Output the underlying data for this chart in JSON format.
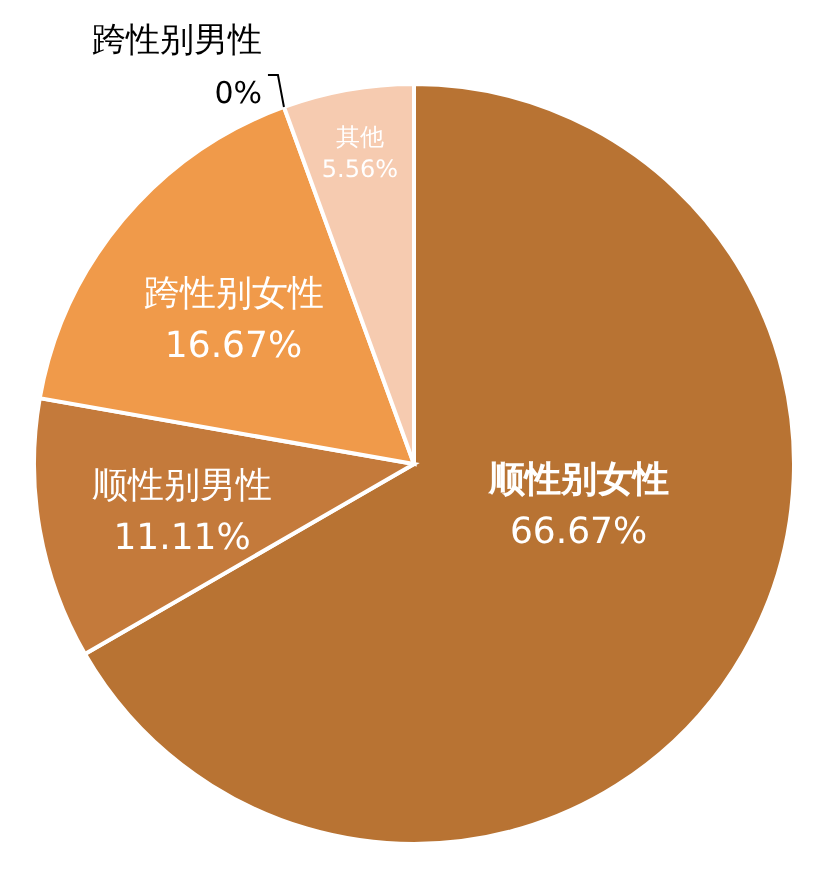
{
  "chart_data": {
    "type": "pie",
    "categories": [
      "顺性别女性",
      "顺性别男性",
      "跨性别女性",
      "跨性别男性",
      "其他"
    ],
    "values": [
      66.67,
      11.11,
      16.67,
      0,
      5.56
    ],
    "value_labels": [
      "66.67%",
      "11.11%",
      "16.67%",
      "0%",
      "5.56%"
    ],
    "colors": [
      "#b87333",
      "#c47a3b",
      "#f09a4a",
      "#e8874a",
      "#f6cbb0"
    ]
  }
}
